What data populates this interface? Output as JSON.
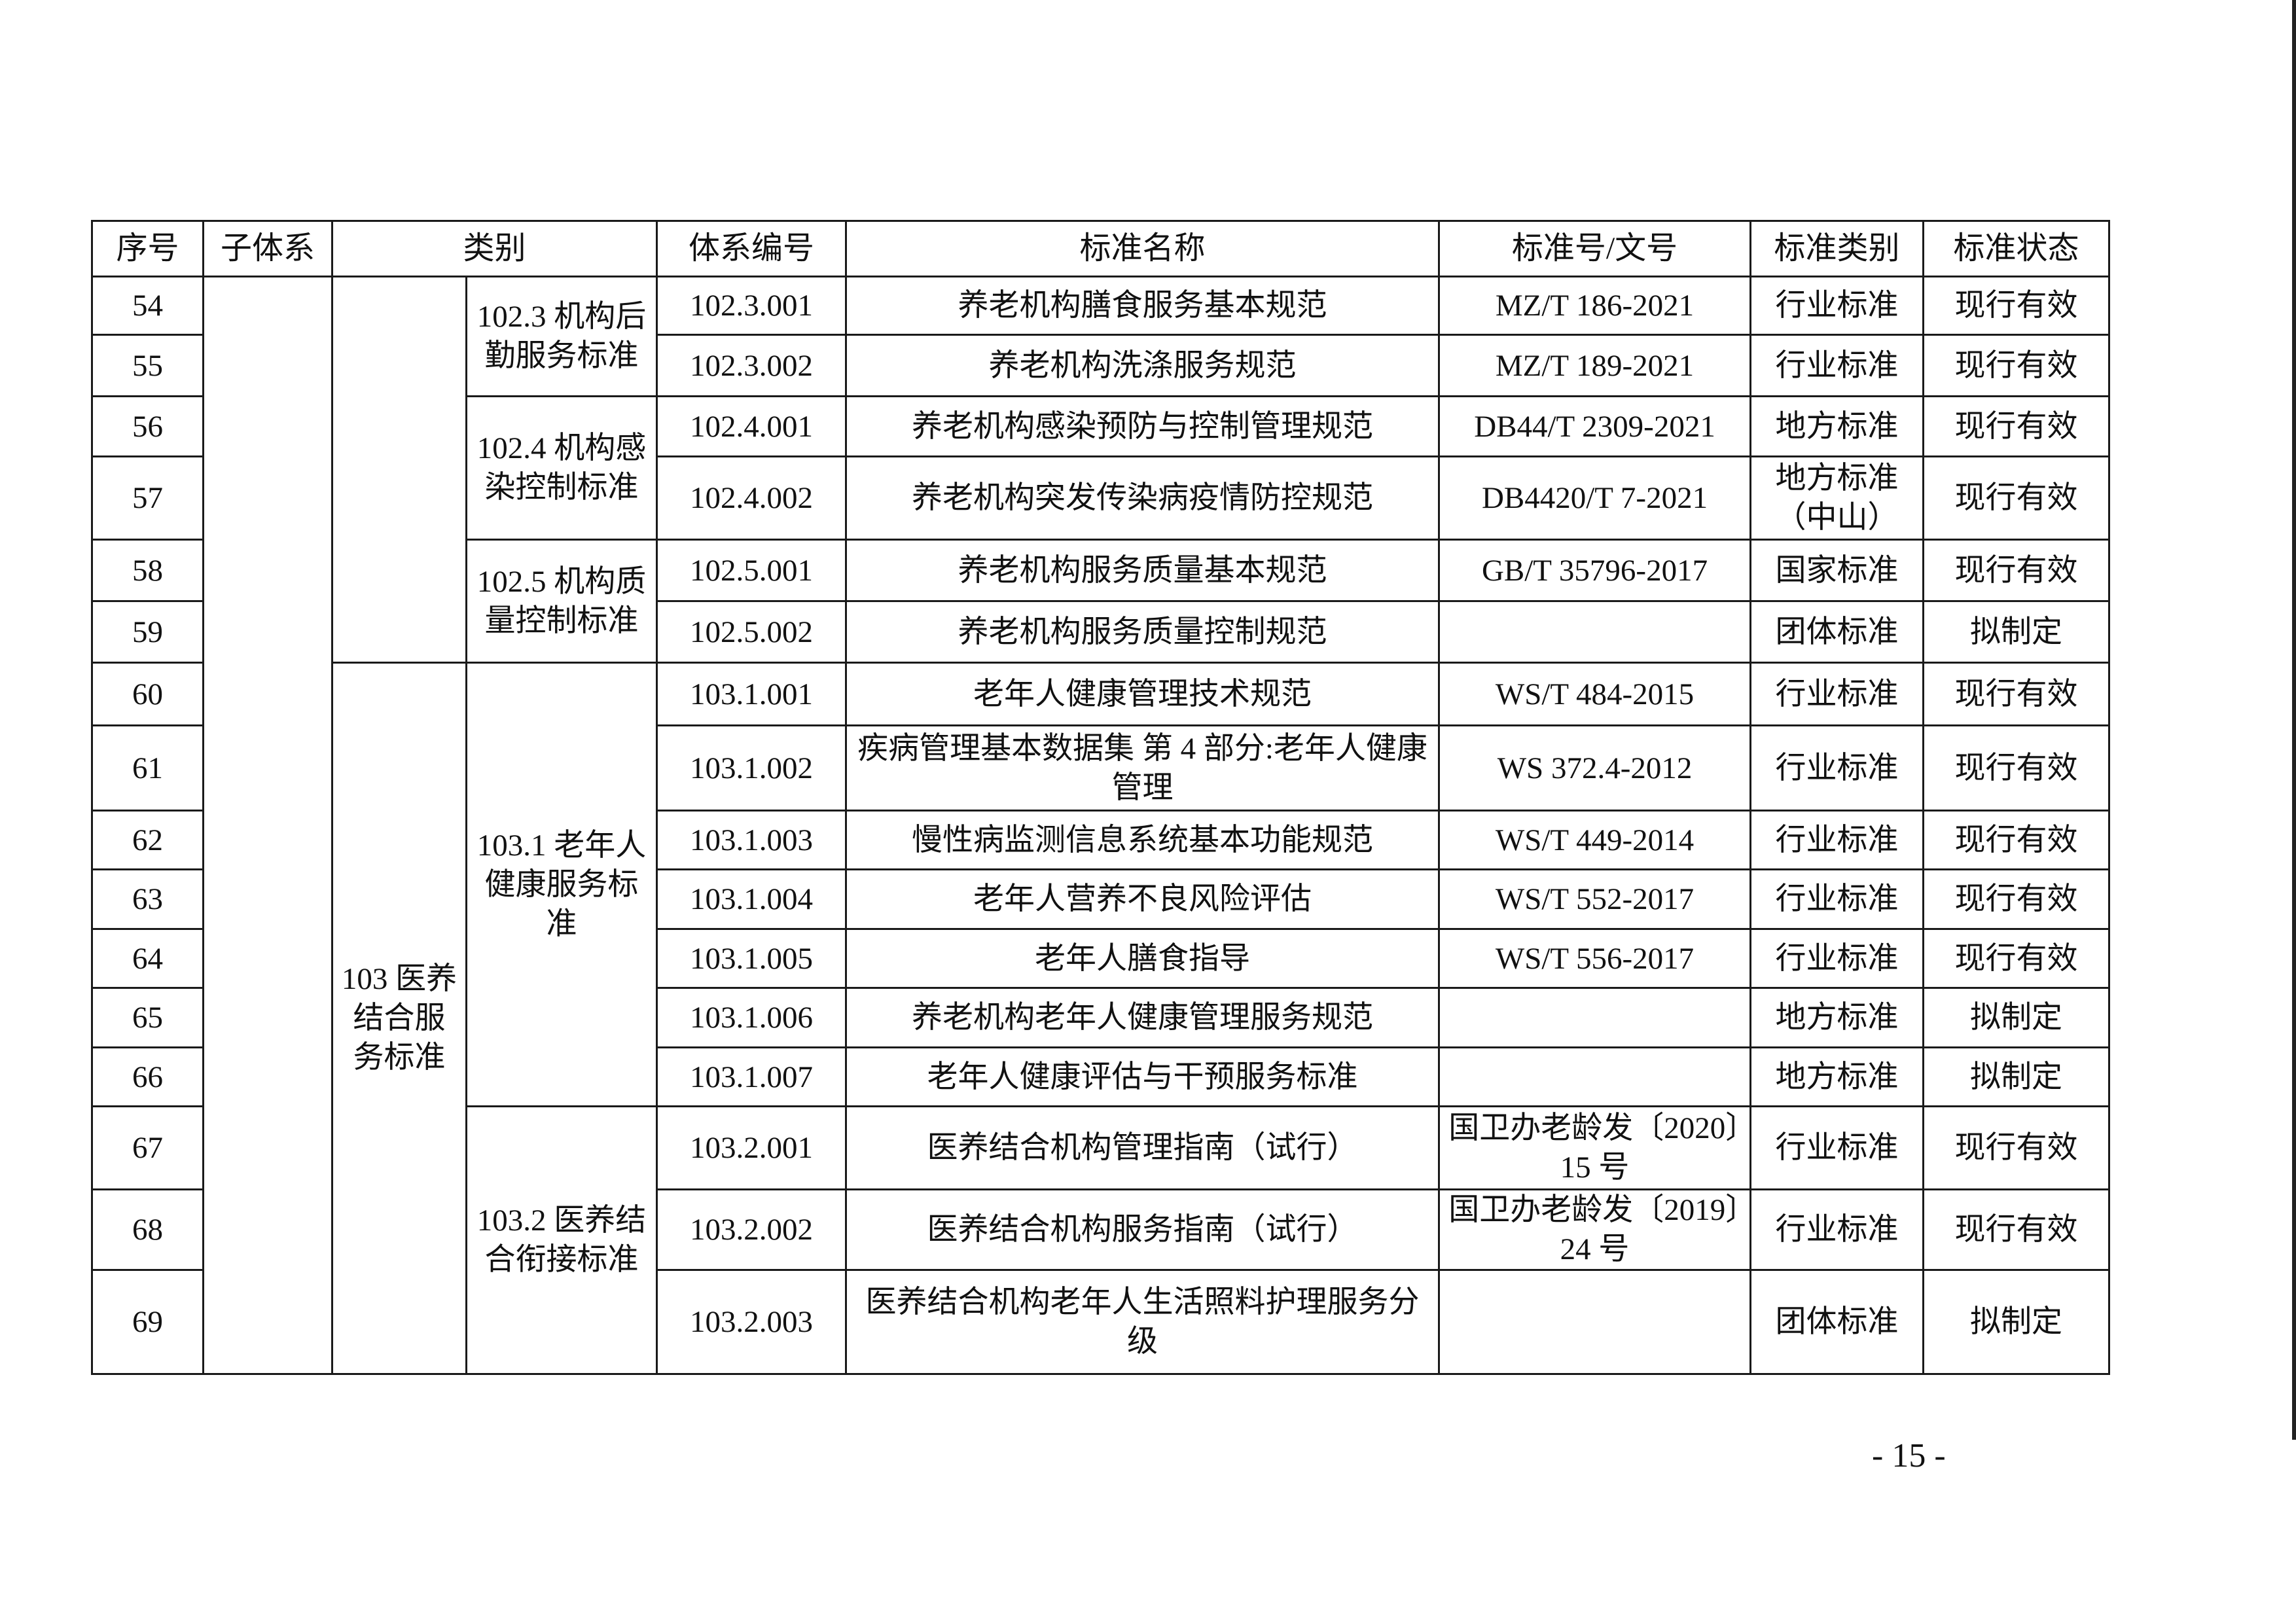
{
  "header": [
    "序号",
    "子体系",
    "类别",
    "体系编号",
    "标准名称",
    "标准号/文号",
    "标准类别",
    "标准状态"
  ],
  "subsystem": "",
  "category_l1": [
    {
      "label": "",
      "rows": 6
    },
    {
      "label": "103 医养结合服务标准",
      "rows": 10
    }
  ],
  "category_l2": [
    {
      "label": "102.3 机构后勤服务标准",
      "rows": 2
    },
    {
      "label": "102.4 机构感染控制标准",
      "rows": 2
    },
    {
      "label": "102.5 机构质量控制标准",
      "rows": 2
    },
    {
      "label": "103.1 老年人健康服务标准",
      "rows": 7
    },
    {
      "label": "103.2 医养结合衔接标准",
      "rows": 3
    }
  ],
  "rows": [
    {
      "no": "54",
      "code": "102.3.001",
      "name": "养老机构膳食服务基本规范",
      "std": "MZ/T 186-2021",
      "type": "行业标准",
      "status": "现行有效"
    },
    {
      "no": "55",
      "code": "102.3.002",
      "name": "养老机构洗涤服务规范",
      "std": "MZ/T 189-2021",
      "type": "行业标准",
      "status": "现行有效"
    },
    {
      "no": "56",
      "code": "102.4.001",
      "name": "养老机构感染预防与控制管理规范",
      "std": "DB44/T 2309-2021",
      "type": "地方标准",
      "status": "现行有效"
    },
    {
      "no": "57",
      "code": "102.4.002",
      "name": "养老机构突发传染病疫情防控规范",
      "std": "DB4420/T 7-2021",
      "type": "地方标准（中山）",
      "status": "现行有效"
    },
    {
      "no": "58",
      "code": "102.5.001",
      "name": "养老机构服务质量基本规范",
      "std": "GB/T 35796-2017",
      "type": "国家标准",
      "status": "现行有效"
    },
    {
      "no": "59",
      "code": "102.5.002",
      "name": "养老机构服务质量控制规范",
      "std": "",
      "type": "团体标准",
      "status": "拟制定"
    },
    {
      "no": "60",
      "code": "103.1.001",
      "name": "老年人健康管理技术规范",
      "std": "WS/T 484-2015",
      "type": "行业标准",
      "status": "现行有效"
    },
    {
      "no": "61",
      "code": "103.1.002",
      "name": "疾病管理基本数据集 第 4 部分:老年人健康管理",
      "std": "WS 372.4-2012",
      "type": "行业标准",
      "status": "现行有效"
    },
    {
      "no": "62",
      "code": "103.1.003",
      "name": "慢性病监测信息系统基本功能规范",
      "std": "WS/T 449-2014",
      "type": "行业标准",
      "status": "现行有效"
    },
    {
      "no": "63",
      "code": "103.1.004",
      "name": "老年人营养不良风险评估",
      "std": "WS/T 552-2017",
      "type": "行业标准",
      "status": "现行有效"
    },
    {
      "no": "64",
      "code": "103.1.005",
      "name": "老年人膳食指导",
      "std": "WS/T 556-2017",
      "type": "行业标准",
      "status": "现行有效"
    },
    {
      "no": "65",
      "code": "103.1.006",
      "name": "养老机构老年人健康管理服务规范",
      "std": "",
      "type": "地方标准",
      "status": "拟制定"
    },
    {
      "no": "66",
      "code": "103.1.007",
      "name": "老年人健康评估与干预服务标准",
      "std": "",
      "type": "地方标准",
      "status": "拟制定"
    },
    {
      "no": "67",
      "code": "103.2.001",
      "name": "医养结合机构管理指南（试行）",
      "std": "国卫办老龄发〔2020〕15 号",
      "type": "行业标准",
      "status": "现行有效"
    },
    {
      "no": "68",
      "code": "103.2.002",
      "name": "医养结合机构服务指南（试行）",
      "std": "国卫办老龄发〔2019〕24 号",
      "type": "行业标准",
      "status": "现行有效"
    },
    {
      "no": "69",
      "code": "103.2.003",
      "name": "医养结合机构老年人生活照料护理服务分级",
      "std": "",
      "type": "团体标准",
      "status": "拟制定"
    }
  ],
  "page_number": "- 15 -"
}
